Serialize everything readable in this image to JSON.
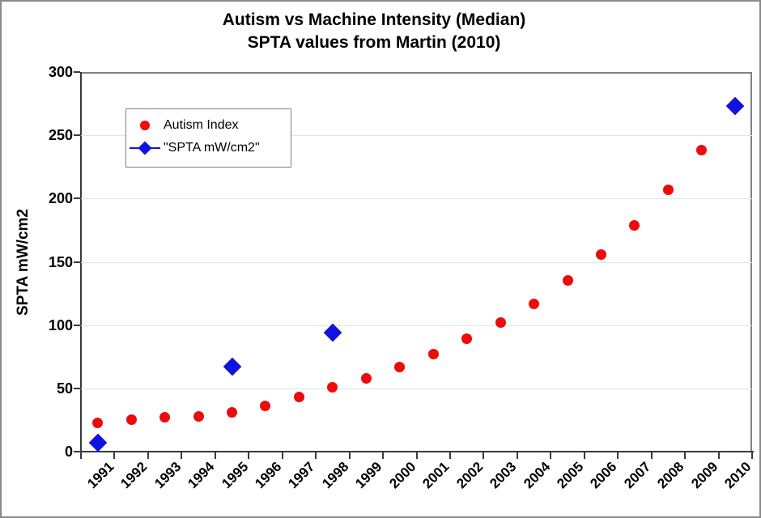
{
  "chart_data": {
    "type": "scatter",
    "title": "Autism vs Machine Intensity (Median)",
    "subtitle": "SPTA values from Martin (2010)",
    "ylabel": "SPTA mW/cm2",
    "xlabel": "",
    "categories": [
      "1991",
      "1992",
      "1993",
      "1994",
      "1995",
      "1996",
      "1997",
      "1998",
      "1999",
      "2000",
      "2001",
      "2002",
      "2003",
      "2004",
      "2005",
      "2006",
      "2007",
      "2008",
      "2009",
      "2010"
    ],
    "ylim": [
      0,
      300
    ],
    "yticks": [
      0,
      50,
      100,
      150,
      200,
      250,
      300
    ],
    "grid": "horizontal-on",
    "legend_position": "inside-top-left",
    "series": [
      {
        "name": "Autism Index",
        "marker": "circle",
        "color": "#ee0b0b",
        "points": [
          {
            "x": "1991",
            "y": 23
          },
          {
            "x": "1992",
            "y": 25
          },
          {
            "x": "1993",
            "y": 27
          },
          {
            "x": "1994",
            "y": 28
          },
          {
            "x": "1995",
            "y": 31
          },
          {
            "x": "1996",
            "y": 36
          },
          {
            "x": "1997",
            "y": 43
          },
          {
            "x": "1998",
            "y": 51
          },
          {
            "x": "1999",
            "y": 58
          },
          {
            "x": "2000",
            "y": 67
          },
          {
            "x": "2001",
            "y": 77
          },
          {
            "x": "2002",
            "y": 89
          },
          {
            "x": "2003",
            "y": 102
          },
          {
            "x": "2004",
            "y": 117
          },
          {
            "x": "2005",
            "y": 135
          },
          {
            "x": "2006",
            "y": 156
          },
          {
            "x": "2007",
            "y": 179
          },
          {
            "x": "2008",
            "y": 207
          },
          {
            "x": "2009",
            "y": 238
          }
        ]
      },
      {
        "name": "\"SPTA mW/cm2\"",
        "marker": "diamond",
        "color": "#1212e0",
        "points": [
          {
            "x": "1991",
            "y": 7
          },
          {
            "x": "1995",
            "y": 67
          },
          {
            "x": "1998",
            "y": 94
          },
          {
            "x": "2010",
            "y": 273
          }
        ]
      }
    ],
    "colors": {
      "gridline": "#dbe5f0",
      "axis": "#3a3a3a",
      "plot_border": "#808080",
      "frame_border": "#8a8a8a",
      "background": "#ffffff"
    }
  }
}
